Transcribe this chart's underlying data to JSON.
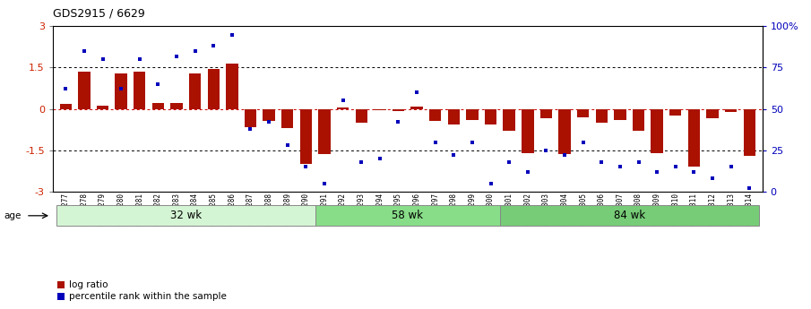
{
  "title": "GDS2915 / 6629",
  "samples": [
    "GSM97277",
    "GSM97278",
    "GSM97279",
    "GSM97280",
    "GSM97281",
    "GSM97282",
    "GSM97283",
    "GSM97284",
    "GSM97285",
    "GSM97286",
    "GSM97287",
    "GSM97288",
    "GSM97289",
    "GSM97290",
    "GSM97291",
    "GSM97292",
    "GSM97293",
    "GSM97294",
    "GSM97295",
    "GSM97296",
    "GSM97297",
    "GSM97298",
    "GSM97299",
    "GSM97300",
    "GSM97301",
    "GSM97302",
    "GSM97303",
    "GSM97304",
    "GSM97305",
    "GSM97306",
    "GSM97307",
    "GSM97308",
    "GSM97309",
    "GSM97310",
    "GSM97311",
    "GSM97312",
    "GSM97313",
    "GSM97314"
  ],
  "log_ratio": [
    0.18,
    1.35,
    0.12,
    1.3,
    1.35,
    0.2,
    0.22,
    1.3,
    1.45,
    1.65,
    -0.65,
    -0.45,
    -0.7,
    -2.0,
    -1.65,
    0.05,
    -0.5,
    -0.05,
    -0.08,
    0.1,
    -0.45,
    -0.55,
    -0.4,
    -0.55,
    -0.8,
    -1.6,
    -0.35,
    -1.65,
    -0.3,
    -0.5,
    -0.4,
    -0.8,
    -1.6,
    -0.25,
    -2.1,
    -0.35,
    -0.1,
    -1.7
  ],
  "percentile": [
    62,
    85,
    80,
    62,
    80,
    65,
    82,
    85,
    88,
    95,
    38,
    42,
    28,
    15,
    5,
    55,
    18,
    20,
    42,
    60,
    30,
    22,
    30,
    5,
    18,
    12,
    25,
    22,
    30,
    18,
    15,
    18,
    12,
    15,
    12,
    8,
    15,
    2
  ],
  "groups": [
    {
      "label": "32 wk",
      "start": 0,
      "end": 14
    },
    {
      "label": "58 wk",
      "start": 14,
      "end": 24
    },
    {
      "label": "84 wk",
      "start": 24,
      "end": 38
    }
  ],
  "group_colors": [
    "#d4f5d4",
    "#88dd88",
    "#77cc77"
  ],
  "bar_color": "#aa1100",
  "dot_color": "#0000bb",
  "ylim": [
    -3,
    3
  ],
  "yticks_left": [
    -3,
    -1.5,
    0,
    1.5,
    3
  ],
  "yticks_right_labels": [
    "0",
    "25",
    "50",
    "75",
    "100%"
  ],
  "hlines_dotted": [
    -1.5,
    1.5
  ],
  "hline_red": 0,
  "legend_bar_label": "log ratio",
  "legend_dot_label": "percentile rank within the sample",
  "age_label": "age"
}
